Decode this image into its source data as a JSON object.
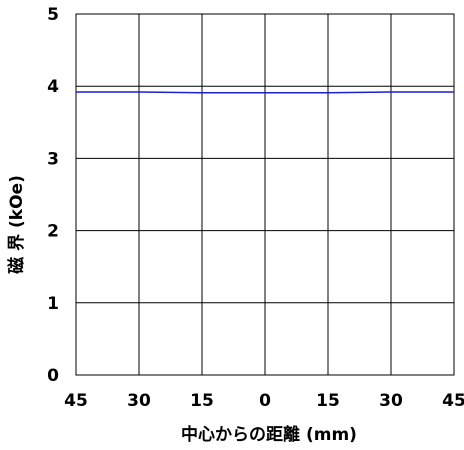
{
  "chart_data": {
    "type": "line",
    "title": "",
    "xlabel": "中心からの距離 (mm)",
    "ylabel": "磁 界 (kOe)",
    "x_tick_labels": [
      "45",
      "30",
      "15",
      "0",
      "15",
      "30",
      "45"
    ],
    "y_tick_labels": [
      "0",
      "1",
      "2",
      "3",
      "4",
      "5"
    ],
    "x": [
      -45,
      -30,
      -15,
      0,
      15,
      30,
      45
    ],
    "ylim": [
      0,
      5
    ],
    "xlim": [
      -45,
      45
    ],
    "grid": true,
    "legend": "none",
    "series": [
      {
        "values": [
          3.92,
          3.92,
          3.91,
          3.91,
          3.91,
          3.92,
          3.92
        ],
        "color": "#1f1fd0"
      }
    ]
  }
}
